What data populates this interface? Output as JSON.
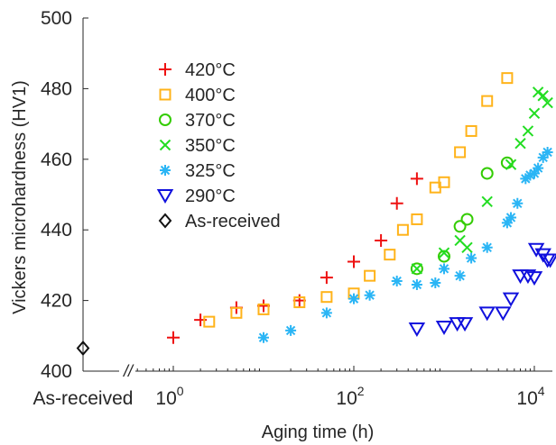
{
  "chart_data": {
    "type": "scatter",
    "title": "",
    "xlabel": "Aging time (h)",
    "ylabel": "Vickers microhardness (HV1)",
    "x_scale": "log",
    "xlim": [
      0.25,
      20000
    ],
    "ylim": [
      400,
      500
    ],
    "y_ticks": [
      "400",
      "420",
      "440",
      "460",
      "480",
      "500"
    ],
    "x_ticks": [
      {
        "value": 1,
        "base": "10",
        "exp": "0"
      },
      {
        "value": 100,
        "base": "10",
        "exp": "2"
      },
      {
        "value": 10000,
        "base": "10",
        "exp": "4"
      }
    ],
    "x_special_tick": "As-received",
    "axis_break": "//",
    "grid": false,
    "legend_position": "upper-left",
    "series": [
      {
        "name": "420°C",
        "marker": "plus",
        "color": "#ee1111",
        "points": [
          [
            1,
            409.5
          ],
          [
            2,
            414.5
          ],
          [
            5,
            418
          ],
          [
            10,
            418.5
          ],
          [
            25,
            420
          ],
          [
            50,
            426.5
          ],
          [
            100,
            431
          ],
          [
            200,
            437
          ],
          [
            300,
            447.5
          ],
          [
            500,
            454.5
          ]
        ]
      },
      {
        "name": "400°C",
        "marker": "square",
        "color": "#ffb31a",
        "points": [
          [
            2.5,
            414
          ],
          [
            5,
            416.5
          ],
          [
            10,
            417.5
          ],
          [
            25,
            419.5
          ],
          [
            50,
            421
          ],
          [
            100,
            422
          ],
          [
            150,
            427
          ],
          [
            250,
            433
          ],
          [
            350,
            440
          ],
          [
            500,
            443
          ],
          [
            800,
            452
          ],
          [
            1000,
            453.5
          ],
          [
            1500,
            462
          ],
          [
            2000,
            468
          ],
          [
            3000,
            476.5
          ],
          [
            5000,
            483
          ]
        ]
      },
      {
        "name": "370°C",
        "marker": "circle",
        "color": "#33cc00",
        "points": [
          [
            500,
            429
          ],
          [
            1000,
            432.5
          ],
          [
            1500,
            441
          ],
          [
            1800,
            443
          ],
          [
            3000,
            456
          ],
          [
            5000,
            459
          ]
        ]
      },
      {
        "name": "350°C",
        "marker": "x",
        "color": "#22dd22",
        "points": [
          [
            500,
            429
          ],
          [
            1000,
            433.5
          ],
          [
            1500,
            437
          ],
          [
            1800,
            435
          ],
          [
            3000,
            448
          ],
          [
            5500,
            458.5
          ],
          [
            7000,
            464.5
          ],
          [
            8500,
            468
          ],
          [
            10000,
            473
          ],
          [
            11000,
            479
          ],
          [
            12500,
            478
          ],
          [
            14000,
            476
          ]
        ]
      },
      {
        "name": "325°C",
        "marker": "asterisk",
        "color": "#2ab5f5",
        "points": [
          [
            10,
            409.5
          ],
          [
            20,
            411.5
          ],
          [
            50,
            416.5
          ],
          [
            100,
            420.5
          ],
          [
            150,
            421.5
          ],
          [
            300,
            425.5
          ],
          [
            500,
            424.5
          ],
          [
            800,
            425
          ],
          [
            1000,
            429
          ],
          [
            1500,
            427
          ],
          [
            2000,
            432
          ],
          [
            3000,
            435
          ],
          [
            5000,
            442
          ],
          [
            5500,
            443.5
          ],
          [
            6500,
            447.5
          ],
          [
            8000,
            454.5
          ],
          [
            9000,
            455.5
          ],
          [
            10000,
            456
          ],
          [
            11000,
            457.5
          ],
          [
            12500,
            460.5
          ],
          [
            14000,
            462
          ]
        ]
      },
      {
        "name": "290°C",
        "marker": "triangle-down",
        "color": "#1010dd",
        "points": [
          [
            500,
            412
          ],
          [
            1000,
            412.5
          ],
          [
            1400,
            413.5
          ],
          [
            1700,
            413.5
          ],
          [
            3000,
            416.5
          ],
          [
            4500,
            416.5
          ],
          [
            5500,
            420.5
          ],
          [
            7000,
            427
          ],
          [
            8500,
            427
          ],
          [
            10000,
            426.5
          ],
          [
            10500,
            434.5
          ],
          [
            12500,
            433
          ],
          [
            14000,
            431.5
          ],
          [
            15000,
            431.5
          ]
        ]
      },
      {
        "name": "As-received",
        "marker": "diamond",
        "color": "#111111",
        "points": [
          [
            "As-received",
            406.5
          ]
        ]
      }
    ]
  }
}
